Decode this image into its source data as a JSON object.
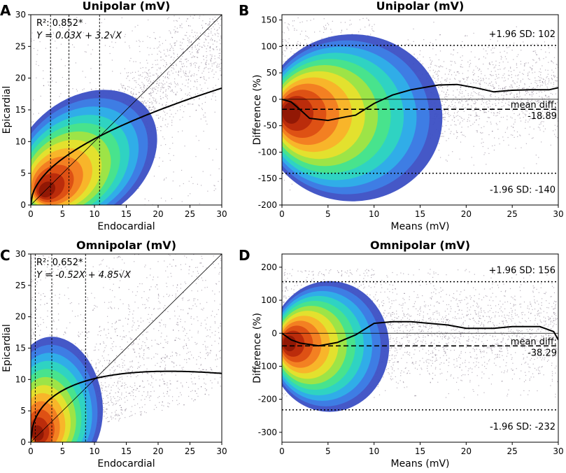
{
  "chart_data": [
    {
      "panel": "A",
      "type": "scatter",
      "title": "Unipolar (mV)",
      "xlabel": "Endocardial",
      "ylabel": "Epicardial",
      "xlim": [
        0,
        30
      ],
      "ylim": [
        0,
        30
      ],
      "xticks": [
        0,
        5,
        10,
        15,
        20,
        25,
        30
      ],
      "yticks": [
        0,
        5,
        10,
        15,
        20,
        25,
        30
      ],
      "annotation_lines": [
        "R²: 0.852*",
        "Y = 0.03X + 3.2√X"
      ],
      "fit": {
        "a": 0.03,
        "b": 3.2
      },
      "identity_line": true,
      "vlines": [
        3.1,
        6.0,
        10.8
      ],
      "density_peak": [
        2.0,
        2.0
      ]
    },
    {
      "panel": "B",
      "type": "scatter",
      "title": "Unipolar (mV)",
      "xlabel": "Means (mV)",
      "ylabel": "Difference (%)",
      "xlim": [
        0,
        30
      ],
      "ylim": [
        -200,
        160
      ],
      "xticks": [
        0,
        5,
        10,
        15,
        20,
        25,
        30
      ],
      "yticks": [
        -200,
        -150,
        -100,
        -50,
        0,
        50,
        100,
        150
      ],
      "upper_loa": 102,
      "lower_loa": -140,
      "mean_diff": -18.89,
      "upper_label": "+1.96 SD: 102",
      "lower_label": "-1.96 SD: -140",
      "mean_label": "mean diff:",
      "mean_value_label": "-18.89",
      "trend_x": [
        0,
        1,
        2,
        3,
        5,
        7,
        8,
        10,
        12,
        14,
        17,
        19,
        21,
        23,
        25,
        27,
        29,
        30
      ],
      "trend_y": [
        0,
        -5,
        -20,
        -36,
        -40,
        -33,
        -30,
        -8,
        8,
        18,
        27,
        28,
        22,
        14,
        17,
        18,
        18,
        22
      ]
    },
    {
      "panel": "C",
      "type": "scatter",
      "title": "Omnipolar (mV)",
      "xlabel": "Endocardial",
      "ylabel": "Epicardial",
      "xlim": [
        0,
        30
      ],
      "ylim": [
        0,
        30
      ],
      "xticks": [
        0,
        5,
        10,
        15,
        20,
        25,
        30
      ],
      "yticks": [
        0,
        5,
        10,
        15,
        20,
        25,
        30
      ],
      "annotation_lines": [
        "R²: 0.652*",
        "Y = -0.52X + 4.85√X"
      ],
      "fit": {
        "a": -0.52,
        "b": 4.85
      },
      "identity_line": true,
      "vlines": [
        0.7,
        3.3,
        8.6
      ],
      "density_peak": [
        0.8,
        1.0
      ]
    },
    {
      "panel": "D",
      "type": "scatter",
      "title": "Omnipolar (mV)",
      "xlabel": "Means (mV)",
      "ylabel": "Difference (%)",
      "xlim": [
        0,
        30
      ],
      "ylim": [
        -330,
        240
      ],
      "xticks": [
        0,
        5,
        10,
        15,
        20,
        25,
        30
      ],
      "yticks": [
        -300,
        -200,
        -100,
        0,
        100,
        200
      ],
      "upper_loa": 156,
      "lower_loa": -232,
      "mean_diff": -38.29,
      "upper_label": "+1.96 SD: 156",
      "lower_label": "-1.96 SD: -232",
      "mean_label": "mean diff:",
      "mean_value_label": "-38.29",
      "trend_x": [
        0,
        1,
        2,
        4,
        6,
        8,
        10,
        12,
        14,
        16,
        18,
        20,
        23,
        25,
        28,
        29.5,
        30
      ],
      "trend_y": [
        0,
        -20,
        -30,
        -38,
        -28,
        -5,
        30,
        35,
        35,
        30,
        25,
        15,
        15,
        20,
        20,
        5,
        -20
      ]
    }
  ]
}
